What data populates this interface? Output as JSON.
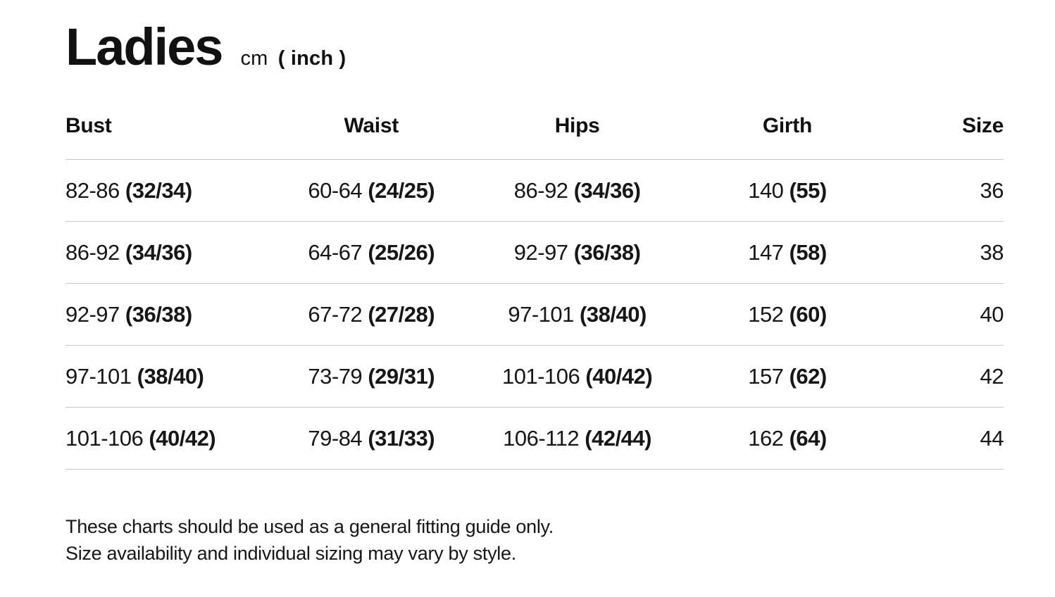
{
  "page": {
    "title": "Ladies",
    "unit_primary": "cm",
    "unit_secondary": "( inch )"
  },
  "table": {
    "headers": [
      "Bust",
      "Waist",
      "Hips",
      "Girth",
      "Size"
    ],
    "rows": [
      {
        "bust": {
          "cm": "82-86",
          "inch": "(32/34)"
        },
        "waist": {
          "cm": "60-64",
          "inch": "(24/25)"
        },
        "hips": {
          "cm": "86-92",
          "inch": "(34/36)"
        },
        "girth": {
          "cm": "140",
          "inch": "(55)"
        },
        "size": "36"
      },
      {
        "bust": {
          "cm": "86-92",
          "inch": "(34/36)"
        },
        "waist": {
          "cm": "64-67",
          "inch": "(25/26)"
        },
        "hips": {
          "cm": "92-97",
          "inch": "(36/38)"
        },
        "girth": {
          "cm": "147",
          "inch": "(58)"
        },
        "size": "38"
      },
      {
        "bust": {
          "cm": "92-97",
          "inch": "(36/38)"
        },
        "waist": {
          "cm": "67-72",
          "inch": "(27/28)"
        },
        "hips": {
          "cm": "97-101",
          "inch": "(38/40)"
        },
        "girth": {
          "cm": "152",
          "inch": "(60)"
        },
        "size": "40"
      },
      {
        "bust": {
          "cm": "97-101",
          "inch": "(38/40)"
        },
        "waist": {
          "cm": "73-79",
          "inch": "(29/31)"
        },
        "hips": {
          "cm": "101-106",
          "inch": "(40/42)"
        },
        "girth": {
          "cm": "157",
          "inch": "(62)"
        },
        "size": "42"
      },
      {
        "bust": {
          "cm": "101-106",
          "inch": "(40/42)"
        },
        "waist": {
          "cm": "79-84",
          "inch": "(31/33)"
        },
        "hips": {
          "cm": "106-112",
          "inch": "(42/44)"
        },
        "girth": {
          "cm": "162",
          "inch": "(64)"
        },
        "size": "44"
      }
    ]
  },
  "footer": {
    "line1": "These charts should be used as a general fitting guide only.",
    "line2": "Size availability and individual sizing may vary by style."
  },
  "colors": {
    "text": "#161616",
    "divider": "#c9c9c9",
    "background": "#ffffff"
  }
}
